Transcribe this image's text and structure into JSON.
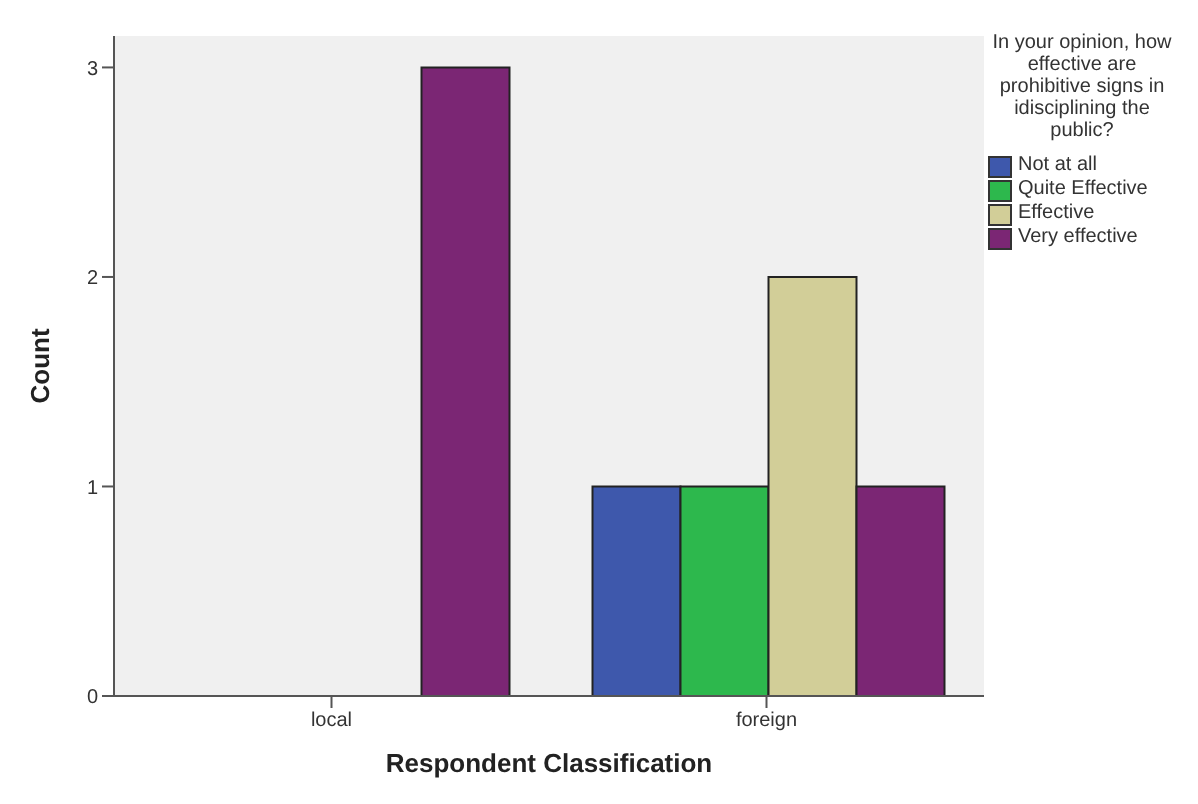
{
  "chart_data": {
    "type": "bar",
    "xlabel": "Respondent Classification",
    "ylabel": "Count",
    "legend_title": "In your opinion, how effective are prohibitive signs in idisciplining the public?",
    "categories": [
      "local",
      "foreign"
    ],
    "series": [
      {
        "name": "Not at all",
        "color": "#3e58ac",
        "values": [
          0,
          1
        ]
      },
      {
        "name": "Quite Effective",
        "color": "#2db84d",
        "values": [
          0,
          1
        ]
      },
      {
        "name": "Effective",
        "color": "#d2ce98",
        "values": [
          0,
          2
        ]
      },
      {
        "name": "Very effective",
        "color": "#7b2674",
        "values": [
          3,
          1
        ]
      }
    ],
    "ylim": [
      0,
      3.15
    ],
    "yticks": [
      0,
      1,
      2,
      3
    ],
    "grid": false,
    "legend": "top right"
  }
}
